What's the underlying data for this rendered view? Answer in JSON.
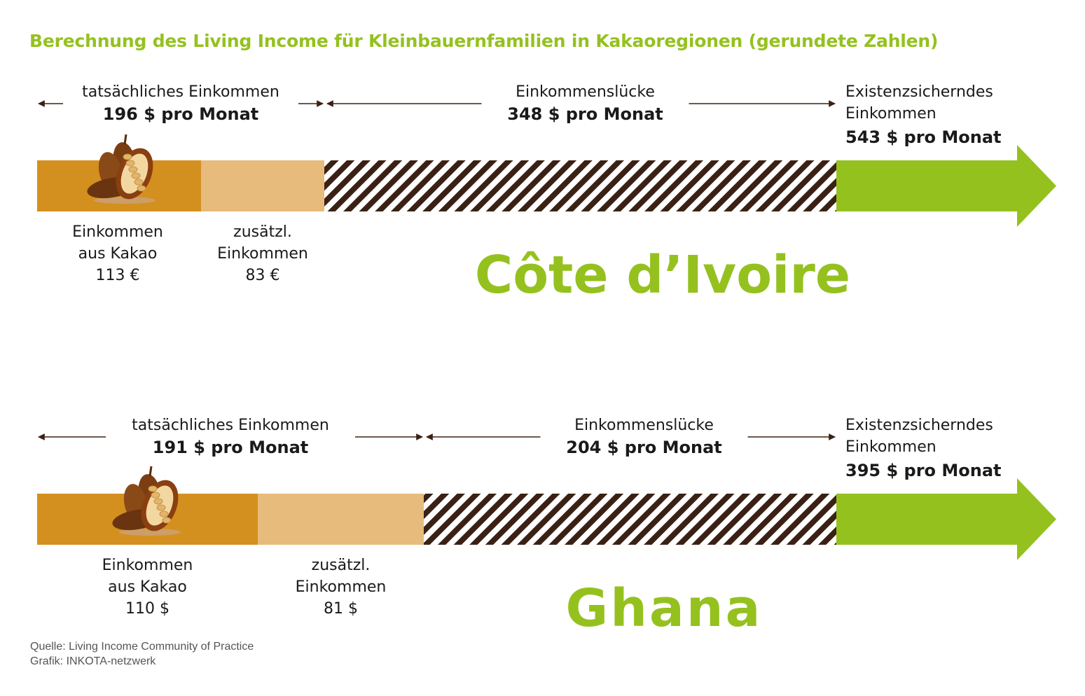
{
  "title": "Berechnung des Living Income für Kleinbauernfamilien in Kakaoregionen (gerundete Zahlen)",
  "colors": {
    "title_green": "#95c11f",
    "cocoa_income": "#d4901f",
    "additional_income": "#e6bb7c",
    "gap_stripe_dark": "#3a2114",
    "living_income_arrow": "#95c11f",
    "annotation_arrow": "#3a2114"
  },
  "icons": [
    "cocoa-pod-icon"
  ],
  "chart_data": [
    {
      "type": "bar",
      "stacked": true,
      "orientation": "horizontal",
      "country": "Côte d’Ivoire",
      "segments": [
        {
          "key": "cocoa",
          "label_line1": "Einkommen",
          "label_line2": "aus Kakao",
          "value_text": "113 €",
          "value": 113
        },
        {
          "key": "additional",
          "label_line1": "zusätzl.",
          "label_line2": "Einkommen",
          "value_text": "83 €",
          "value": 83
        },
        {
          "key": "gap",
          "value": 348
        },
        {
          "key": "living",
          "value": 543
        }
      ],
      "actual_income": {
        "label": "tatsächliches Einkommen",
        "value_text": "196 $ pro Monat",
        "value": 196
      },
      "income_gap": {
        "label": "Einkommenslücke",
        "value_text": "348 $ pro Monat",
        "value": 348
      },
      "living_income": {
        "label_line1": "Existenzsicherndes",
        "label_line2": "Einkommen",
        "value_text": "543 $ pro Monat",
        "value": 543
      }
    },
    {
      "type": "bar",
      "stacked": true,
      "orientation": "horizontal",
      "country": "Ghana",
      "segments": [
        {
          "key": "cocoa",
          "label_line1": "Einkommen",
          "label_line2": "aus Kakao",
          "value_text": "110 $",
          "value": 110
        },
        {
          "key": "additional",
          "label_line1": "zusätzl.",
          "label_line2": "Einkommen",
          "value_text": "81 $",
          "value": 81
        },
        {
          "key": "gap",
          "value": 204
        },
        {
          "key": "living",
          "value": 395
        }
      ],
      "actual_income": {
        "label": "tatsächliches Einkommen",
        "value_text": "191 $ pro Monat",
        "value": 191
      },
      "income_gap": {
        "label": "Einkommenslücke",
        "value_text": "204 $ pro Monat",
        "value": 204
      },
      "living_income": {
        "label_line1": "Existenzsicherndes",
        "label_line2": "Einkommen",
        "value_text": "395 $ pro Monat",
        "value": 395
      }
    }
  ],
  "footer": {
    "source": "Quelle: Living Income Community of Practice",
    "graphic": "Grafik: INKOTA-netzwerk"
  }
}
